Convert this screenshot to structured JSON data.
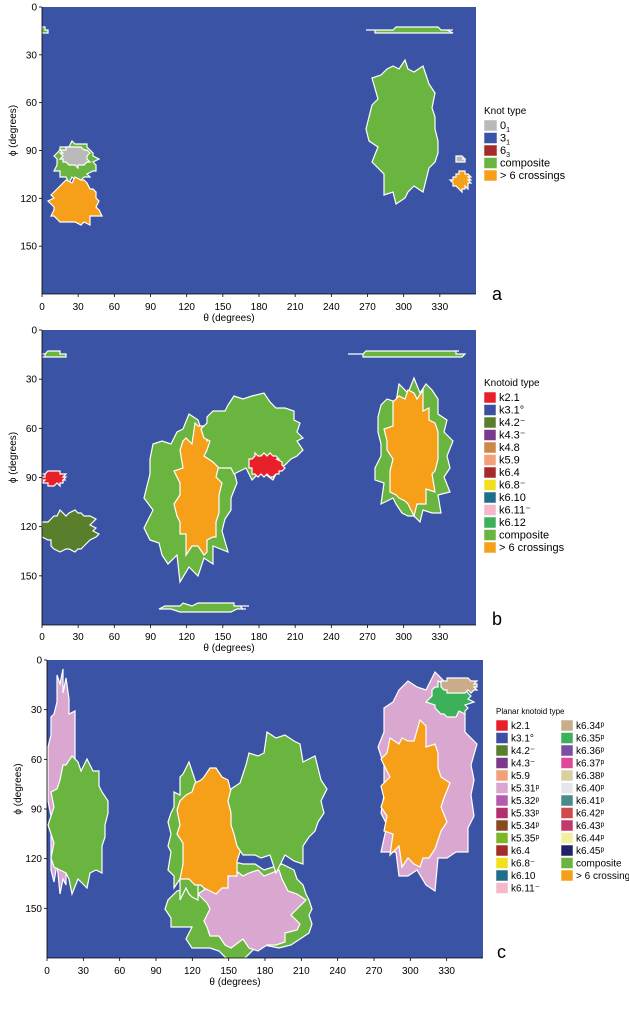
{
  "chart_data": [
    {
      "panel": "a",
      "type": "heatmap",
      "xlabel": "θ (degrees)",
      "ylabel": "ϕ (degrees)",
      "xlim": [
        0,
        360
      ],
      "ylim": [
        0,
        180
      ],
      "y_inverted": true,
      "xticks": [
        "0",
        "30",
        "60",
        "90",
        "120",
        "150",
        "180",
        "210",
        "240",
        "270",
        "300",
        "330"
      ],
      "yticks": [
        "0",
        "30",
        "60",
        "90",
        "120",
        "150"
      ],
      "legend_title": "Knot type",
      "legend": [
        {
          "label": "0",
          "sub": "1",
          "color": "#b9b9b9"
        },
        {
          "label": "3",
          "sub": "1",
          "color": "#3a55a6"
        },
        {
          "label": "6",
          "sub": "3",
          "color": "#a52a2a"
        },
        {
          "label": "composite",
          "color": "#6ab440"
        },
        {
          "label": "> 6 crossings",
          "color": "#f6a01a"
        }
      ],
      "background_class": "3₁",
      "regions": [
        {
          "class": "composite",
          "theta": [
            0,
            3
          ],
          "phi": [
            13,
            17
          ]
        },
        {
          "class": "composite",
          "theta": [
            270,
            340
          ],
          "phi": [
            13,
            17
          ]
        },
        {
          "class": "composite",
          "theta": [
            270,
            330
          ],
          "phi": [
            32,
            120
          ]
        },
        {
          "class": "composite",
          "theta": [
            10,
            45
          ],
          "phi": [
            85,
            110
          ]
        },
        {
          "class": "0₁",
          "theta": [
            15,
            40
          ],
          "phi": [
            87,
            100
          ]
        },
        {
          "class": "> 6 crossings",
          "theta": [
            5,
            50
          ],
          "phi": [
            108,
            137
          ]
        },
        {
          "class": "> 6 crossings",
          "theta": [
            340,
            355
          ],
          "phi": [
            103,
            115
          ]
        },
        {
          "class": "0₁",
          "theta": [
            343,
            350
          ],
          "phi": [
            93,
            98
          ]
        }
      ]
    },
    {
      "panel": "b",
      "type": "heatmap",
      "xlabel": "θ (degrees)",
      "ylabel": "ϕ (degrees)",
      "xlim": [
        0,
        360
      ],
      "ylim": [
        0,
        180
      ],
      "y_inverted": true,
      "xticks": [
        "0",
        "30",
        "60",
        "90",
        "120",
        "150",
        "180",
        "210",
        "240",
        "270",
        "300",
        "330"
      ],
      "yticks": [
        "0",
        "30",
        "60",
        "90",
        "120",
        "150"
      ],
      "legend_title": "Knotoid type",
      "legend": [
        {
          "label": "k2.1",
          "color": "#e8202a"
        },
        {
          "label": "k3.1°",
          "color": "#3c4fa0"
        },
        {
          "label": "k4.2⁻",
          "color": "#5a7f2c"
        },
        {
          "label": "k4.3⁻",
          "color": "#7a3a8c"
        },
        {
          "label": "k4.8",
          "color": "#cc8844"
        },
        {
          "label": "k5.9",
          "color": "#f4a07a"
        },
        {
          "label": "k6.4",
          "color": "#a52a2a"
        },
        {
          "label": "k6.8⁻",
          "color": "#f0e020"
        },
        {
          "label": "k6.10",
          "color": "#1f6e8c"
        },
        {
          "label": "k6.11⁻",
          "color": "#f5b8c8"
        },
        {
          "label": "k6.12",
          "color": "#3db05a"
        },
        {
          "label": "composite",
          "color": "#6ab440"
        },
        {
          "label": "> 6 crossings",
          "color": "#f6a01a"
        }
      ],
      "background_class": "k3.1°",
      "regions": [
        {
          "class": "composite",
          "theta": [
            0,
            20
          ],
          "phi": [
            13,
            17
          ]
        },
        {
          "class": "composite",
          "theta": [
            255,
            350
          ],
          "phi": [
            12,
            17
          ]
        },
        {
          "class": "composite",
          "theta": [
            85,
            160
          ],
          "phi": [
            55,
            150
          ]
        },
        {
          "class": "> 6 crossings",
          "theta": [
            110,
            150
          ],
          "phi": [
            60,
            140
          ]
        },
        {
          "class": "composite",
          "theta": [
            130,
            220
          ],
          "phi": [
            40,
            90
          ]
        },
        {
          "class": "k2.1",
          "theta": [
            170,
            200
          ],
          "phi": [
            75,
            90
          ]
        },
        {
          "class": "composite",
          "theta": [
            100,
            170
          ],
          "phi": [
            167,
            172
          ]
        },
        {
          "class": "composite",
          "theta": [
            275,
            340
          ],
          "phi": [
            32,
            120
          ]
        },
        {
          "class": "> 6 crossings",
          "theta": [
            285,
            330
          ],
          "phi": [
            38,
            110
          ]
        },
        {
          "class": "k2.1",
          "theta": [
            0,
            20
          ],
          "phi": [
            85,
            95
          ]
        },
        {
          "class": "k4.2⁻",
          "theta": [
            0,
            45
          ],
          "phi": [
            110,
            135
          ]
        }
      ]
    },
    {
      "panel": "c",
      "type": "heatmap",
      "xlabel": "θ (degrees)",
      "ylabel": "ϕ (degrees)",
      "xlim": [
        0,
        360
      ],
      "ylim": [
        0,
        180
      ],
      "y_inverted": true,
      "xticks": [
        "0",
        "30",
        "60",
        "90",
        "120",
        "150",
        "180",
        "210",
        "240",
        "270",
        "300",
        "330"
      ],
      "yticks": [
        "0",
        "30",
        "60",
        "90",
        "120",
        "150"
      ],
      "legend_title": "Planar knotoid type",
      "legend": [
        {
          "label": "k2.1",
          "color": "#e8202a"
        },
        {
          "label": "k3.1°",
          "color": "#3c4fa0"
        },
        {
          "label": "k4.2⁻",
          "color": "#5a7f2c"
        },
        {
          "label": "k4.3⁻",
          "color": "#7a3a8c"
        },
        {
          "label": "k5.9",
          "color": "#f4a07a"
        },
        {
          "label": "k5.31ᵖ",
          "color": "#d9a7cf"
        },
        {
          "label": "k5.32ᵖ",
          "color": "#b45bab"
        },
        {
          "label": "k5.33ᵖ",
          "color": "#b2306e"
        },
        {
          "label": "k5.34ᵖ",
          "color": "#8a4a20"
        },
        {
          "label": "k5.35ᵖ",
          "color": "#7ab82a"
        },
        {
          "label": "k6.4",
          "color": "#a52a2a"
        },
        {
          "label": "k6.8⁻",
          "color": "#f0e020"
        },
        {
          "label": "k6.10",
          "color": "#1f6e8c"
        },
        {
          "label": "k6.11⁻",
          "color": "#f5b8c8"
        },
        {
          "label": "k6.34ᵖ",
          "color": "#c9ad8a"
        },
        {
          "label": "k6.35ᵖ",
          "color": "#3db05a"
        },
        {
          "label": "k6.36ᵖ",
          "color": "#7b4fa2"
        },
        {
          "label": "k6.37ᵖ",
          "color": "#e0489a"
        },
        {
          "label": "k6.38ᵖ",
          "color": "#d8d0a0"
        },
        {
          "label": "k6.40ᵖ",
          "color": "#e6e6ea"
        },
        {
          "label": "k6.41ᵖ",
          "color": "#4a8a8a"
        },
        {
          "label": "k6.42ᵖ",
          "color": "#d04a4a"
        },
        {
          "label": "k6.43ᵖ",
          "color": "#c03a6a"
        },
        {
          "label": "k6.44ᵖ",
          "color": "#f0f0a0"
        },
        {
          "label": "k6.45ᵖ",
          "color": "#222266"
        },
        {
          "label": "composite",
          "color": "#6ab440"
        },
        {
          "label": "> 6 crossings",
          "color": "#f6a01a"
        }
      ],
      "background_class": "k3.1°",
      "regions": [
        {
          "class": "k5.31ᵖ",
          "theta": [
            0,
            25
          ],
          "phi": [
            8,
            140
          ]
        },
        {
          "class": "composite",
          "theta": [
            0,
            50
          ],
          "phi": [
            60,
            140
          ]
        },
        {
          "class": "composite",
          "theta": [
            100,
            225
          ],
          "phi": [
            120,
            180
          ]
        },
        {
          "class": "k5.31ᵖ",
          "theta": [
            125,
            210
          ],
          "phi": [
            125,
            175
          ]
        },
        {
          "class": "composite",
          "theta": [
            100,
            135
          ],
          "phi": [
            65,
            145
          ]
        },
        {
          "class": "> 6 crossings",
          "theta": [
            105,
            165
          ],
          "phi": [
            65,
            145
          ]
        },
        {
          "class": "composite",
          "theta": [
            150,
            230
          ],
          "phi": [
            45,
            125
          ]
        },
        {
          "class": "k5.31ᵖ",
          "theta": [
            270,
            355
          ],
          "phi": [
            10,
            135
          ]
        },
        {
          "class": "> 6 crossings",
          "theta": [
            275,
            330
          ],
          "phi": [
            40,
            125
          ]
        },
        {
          "class": "k6.35ᵖ",
          "theta": [
            315,
            350
          ],
          "phi": [
            12,
            35
          ]
        },
        {
          "class": "k6.34ᵖ",
          "theta": [
            325,
            355
          ],
          "phi": [
            10,
            20
          ]
        }
      ]
    }
  ],
  "panels": [
    {
      "letter": "a"
    },
    {
      "letter": "b"
    },
    {
      "letter": "c"
    }
  ],
  "colors": {
    "background": "#3b53a4",
    "outline": "#ffffff",
    "axis": "#000000"
  }
}
